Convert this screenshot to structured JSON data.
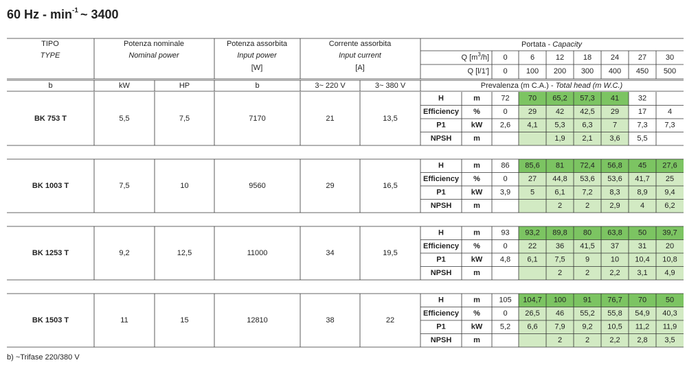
{
  "title": {
    "main": "60 Hz - min",
    "sup": "-1",
    "rest": "~ 3400"
  },
  "header": {
    "type": "TIPO",
    "type_en": "TYPE",
    "nominal": "Potenza nominale",
    "nominal_en": "Nominal power",
    "absorbed": "Potenza assorbita",
    "absorbed_en": "Input power",
    "absorbed_unit": "[W]",
    "current": "Corrente assorbita",
    "current_en": "Input current",
    "current_unit": "[A]",
    "capacity": "Portata - ",
    "capacity_en": "Capacity",
    "q1_label": "Q [m",
    "q1_sup": "3",
    "q1_end": "/h]",
    "q2_label": "Q [l/1']",
    "q1": [
      "0",
      "6",
      "12",
      "18",
      "24",
      "27",
      "30"
    ],
    "q2": [
      "0",
      "100",
      "200",
      "300",
      "400",
      "450",
      "500"
    ]
  },
  "subheader": {
    "cells": [
      "b",
      "kW",
      "HP",
      "b",
      "3~ 220 V",
      "3~ 380 V"
    ],
    "head": "Prevalenza (m C.A.) - ",
    "head_en": "Total head (m W.C.)"
  },
  "parameters": [
    {
      "name": "H",
      "unit": "m"
    },
    {
      "name": "Efficiency",
      "unit": "%"
    },
    {
      "name": "P1",
      "unit": "kW"
    },
    {
      "name": "NPSH",
      "unit": "m"
    }
  ],
  "groups": [
    {
      "model": "BK 753 T",
      "kw": "5,5",
      "hp": "7,5",
      "power": "7170",
      "a220": "21",
      "a380": "13,5",
      "rows": [
        [
          "72",
          "70",
          "65,2",
          "57,3",
          "41",
          "32",
          null
        ],
        [
          "0",
          "29",
          "42",
          "42,5",
          "29",
          "17",
          "4"
        ],
        [
          "2,6",
          "4,1",
          "5,3",
          "6,3",
          "7",
          "7,3",
          "7,3"
        ],
        [
          null,
          null,
          "1,9",
          "2,1",
          "3,6",
          "5,5",
          null
        ]
      ]
    },
    {
      "model": "BK 1003 T",
      "kw": "7,5",
      "hp": "10",
      "power": "9560",
      "a220": "29",
      "a380": "16,5",
      "rows": [
        [
          "86",
          "85,6",
          "81",
          "72,4",
          "56,8",
          "45",
          "27,6"
        ],
        [
          "0",
          "27",
          "44,8",
          "53,6",
          "53,6",
          "41,7",
          "25"
        ],
        [
          "3,9",
          "5",
          "6,1",
          "7,2",
          "8,3",
          "8,9",
          "9,4"
        ],
        [
          null,
          null,
          "2",
          "2",
          "2,9",
          "4",
          "6,2"
        ]
      ]
    },
    {
      "model": "BK 1253 T",
      "kw": "9,2",
      "hp": "12,5",
      "power": "11000",
      "a220": "34",
      "a380": "19,5",
      "rows": [
        [
          "93",
          "93,2",
          "89,8",
          "80",
          "63,8",
          "50",
          "39,7"
        ],
        [
          "0",
          "22",
          "36",
          "41,5",
          "37",
          "31",
          "20"
        ],
        [
          "4,8",
          "6,1",
          "7,5",
          "9",
          "10",
          "10,4",
          "10,8"
        ],
        [
          null,
          null,
          "2",
          "2",
          "2,2",
          "3,1",
          "4,9"
        ]
      ]
    },
    {
      "model": "BK 1503 T",
      "kw": "11",
      "hp": "15",
      "power": "12810",
      "a220": "38",
      "a380": "22",
      "rows": [
        [
          "105",
          "104,7",
          "100",
          "91",
          "76,7",
          "70",
          "50"
        ],
        [
          "0",
          "26,5",
          "46",
          "55,2",
          "55,8",
          "54,9",
          "40,3"
        ],
        [
          "5,2",
          "6,6",
          "7,9",
          "9,2",
          "10,5",
          "11,2",
          "11,9"
        ],
        [
          null,
          null,
          "2",
          "2",
          "2,2",
          "2,8",
          "3,5"
        ]
      ]
    }
  ],
  "footnote": "b) ~Trifase 220/380 V"
}
